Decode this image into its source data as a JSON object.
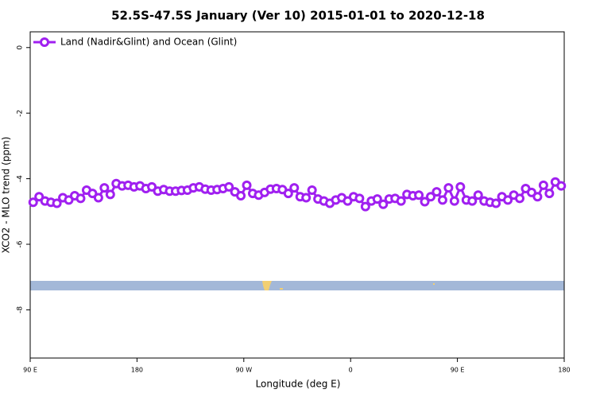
{
  "chart_data": {
    "type": "line",
    "title": "52.5S-47.5S January (Ver 10)   2015-01-01 to 2020-12-18",
    "x_label": "Longitude (deg E)",
    "y_label": "XCO2 - MLO trend (ppm)",
    "x": [
      92.5,
      97.5,
      102.5,
      107.5,
      112.5,
      117.5,
      122.5,
      127.5,
      132.5,
      137.5,
      142.5,
      147.5,
      152.5,
      157.5,
      162.5,
      167.5,
      172.5,
      177.5,
      182.5,
      187.5,
      192.5,
      197.5,
      202.5,
      207.5,
      212.5,
      217.5,
      222.5,
      227.5,
      232.5,
      237.5,
      242.5,
      247.5,
      252.5,
      257.5,
      262.5,
      267.5,
      272.5,
      277.5,
      282.5,
      287.5,
      292.5,
      297.5,
      302.5,
      307.5,
      312.5,
      317.5,
      322.5,
      327.5,
      332.5,
      337.5,
      342.5,
      347.5,
      352.5,
      357.5,
      362.5,
      367.5,
      372.5,
      377.5,
      382.5,
      387.5,
      392.5,
      397.5,
      402.5,
      407.5,
      412.5,
      417.5,
      422.5,
      427.5,
      432.5,
      437.5,
      442.5,
      447.5,
      452.5,
      457.5,
      462.5,
      467.5,
      472.5,
      477.5,
      482.5,
      487.5,
      492.5,
      497.5,
      502.5,
      507.5,
      512.5,
      517.5,
      522.5,
      527.5,
      532.5,
      537.5
    ],
    "series": [
      {
        "name": "Land (Nadir&Glint) and Ocean (Glint)",
        "color": "#a020f0",
        "values": [
          -4.72,
          -4.55,
          -4.68,
          -4.72,
          -4.75,
          -4.58,
          -4.65,
          -4.52,
          -4.6,
          -4.35,
          -4.45,
          -4.58,
          -4.28,
          -4.48,
          -4.15,
          -4.22,
          -4.2,
          -4.25,
          -4.22,
          -4.3,
          -4.25,
          -4.38,
          -4.33,
          -4.38,
          -4.38,
          -4.36,
          -4.35,
          -4.28,
          -4.25,
          -4.32,
          -4.35,
          -4.33,
          -4.3,
          -4.25,
          -4.4,
          -4.52,
          -4.2,
          -4.45,
          -4.5,
          -4.42,
          -4.32,
          -4.3,
          -4.33,
          -4.45,
          -4.28,
          -4.55,
          -4.58,
          -4.35,
          -4.62,
          -4.68,
          -4.75,
          -4.65,
          -4.58,
          -4.68,
          -4.55,
          -4.6,
          -4.85,
          -4.68,
          -4.62,
          -4.78,
          -4.62,
          -4.6,
          -4.68,
          -4.48,
          -4.52,
          -4.5,
          -4.7,
          -4.55,
          -4.4,
          -4.65,
          -4.28,
          -4.68,
          -4.25,
          -4.65,
          -4.68,
          -4.5,
          -4.68,
          -4.72,
          -4.75,
          -4.55,
          -4.65,
          -4.5,
          -4.6,
          -4.3,
          -4.42,
          -4.55,
          -4.2,
          -4.45,
          -4.1,
          -4.22
        ]
      }
    ],
    "xlim": [
      90,
      540
    ],
    "xticks": [
      {
        "value": 90,
        "label": "90 E"
      },
      180,
      {
        "value": 270,
        "label": "90 W"
      },
      {
        "value": 360,
        "label": "0"
      },
      {
        "value": 450,
        "label": "90 E"
      },
      {
        "value": 540,
        "label": "180"
      }
    ],
    "ylim": [
      -9.47,
      0.48
    ],
    "yticks": [
      0,
      -2,
      -4,
      -6,
      -8
    ],
    "legend": "top-left"
  }
}
